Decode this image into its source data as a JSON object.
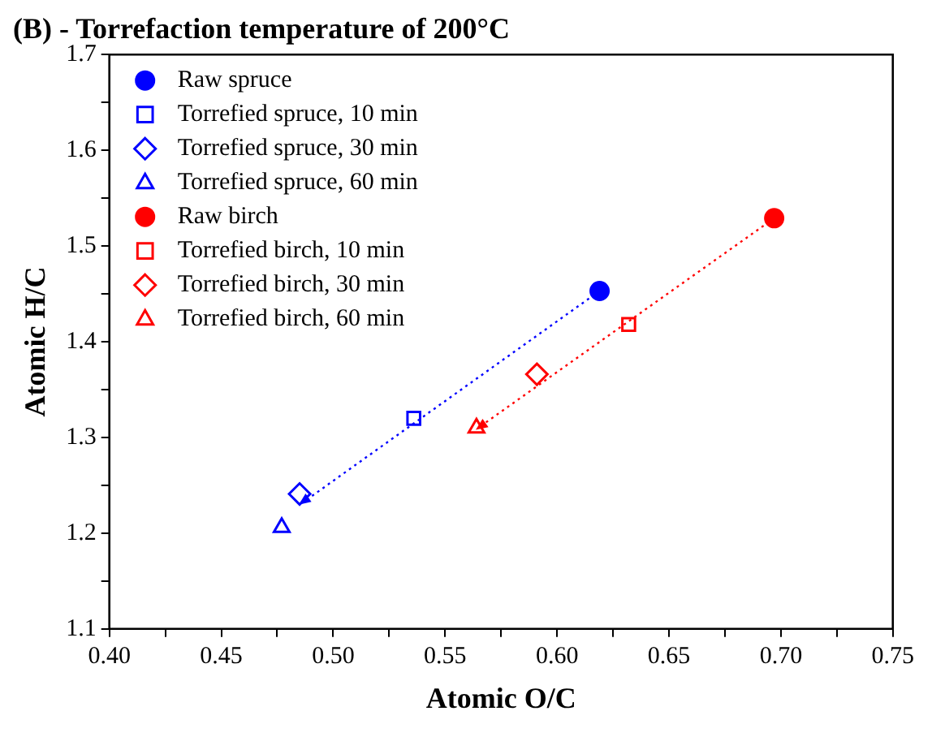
{
  "chart_data": {
    "type": "scatter",
    "title": "(B) - Torrefaction temperature of 200°C",
    "xlabel": "Atomic O/C",
    "ylabel": "Atomic H/C",
    "xlim": [
      0.4,
      0.75
    ],
    "xticks": [
      {
        "value": 0.4,
        "label": "0.40"
      },
      {
        "value": 0.425,
        "label": null
      },
      {
        "value": 0.45,
        "label": "0.45"
      },
      {
        "value": 0.475,
        "label": null
      },
      {
        "value": 0.5,
        "label": "0.50"
      },
      {
        "value": 0.525,
        "label": null
      },
      {
        "value": 0.55,
        "label": "0.55"
      },
      {
        "value": 0.575,
        "label": null
      },
      {
        "value": 0.6,
        "label": "0.60"
      },
      {
        "value": 0.625,
        "label": null
      },
      {
        "value": 0.65,
        "label": "0.65"
      },
      {
        "value": 0.675,
        "label": null
      },
      {
        "value": 0.7,
        "label": "0.70"
      },
      {
        "value": 0.725,
        "label": null
      },
      {
        "value": 0.75,
        "label": "0.75"
      }
    ],
    "ylim": [
      1.1,
      1.7
    ],
    "yticks": [
      1.1,
      {
        "value": 1.15,
        "label": null
      },
      1.2,
      {
        "value": 1.25,
        "label": null
      },
      1.3,
      {
        "value": 1.35,
        "label": null
      },
      1.4,
      {
        "value": 1.45,
        "label": null
      },
      1.5,
      {
        "value": 1.55,
        "label": null
      },
      1.6,
      {
        "value": 1.65,
        "label": null
      },
      1.7
    ],
    "grid": false,
    "legend": "top left",
    "series": [
      {
        "name": "Raw spruce",
        "color": "#0000ff",
        "marker": "circle",
        "x": [
          0.619
        ],
        "values": [
          1.453
        ]
      },
      {
        "name": "Torrefied spruce, 10 min",
        "color": "#0000ff",
        "marker": "square",
        "x": [
          0.536
        ],
        "values": [
          1.32
        ]
      },
      {
        "name": "Torrefied spruce, 30 min",
        "color": "#0000ff",
        "marker": "diamond",
        "x": [
          0.485
        ],
        "values": [
          1.241
        ]
      },
      {
        "name": "Torrefied spruce, 60 min",
        "color": "#0000ff",
        "marker": "triangle",
        "x": [
          0.477
        ],
        "values": [
          1.206
        ]
      },
      {
        "name": "Raw birch",
        "color": "#ff0000",
        "marker": "circle",
        "x": [
          0.697
        ],
        "values": [
          1.529
        ]
      },
      {
        "name": "Torrefied birch, 10 min",
        "color": "#ff0000",
        "marker": "square",
        "x": [
          0.632
        ],
        "values": [
          1.418
        ]
      },
      {
        "name": "Torrefied birch, 30 min",
        "color": "#ff0000",
        "marker": "diamond",
        "x": [
          0.591
        ],
        "values": [
          1.366
        ]
      },
      {
        "name": "Torrefied birch, 60 min",
        "color": "#ff0000",
        "marker": "triangle",
        "x": [
          0.564
        ],
        "values": [
          1.31
        ]
      },
      {
        "type": "line",
        "color": "#0000ff",
        "line_style": "dotted",
        "x": [
          0.619,
          0.487
        ],
        "values": [
          1.453,
          1.233
        ]
      },
      {
        "type": "line",
        "color": "#ff0000",
        "line_style": "dotted",
        "x": [
          0.697,
          0.566
        ],
        "values": [
          1.529,
          1.312
        ]
      }
    ]
  }
}
